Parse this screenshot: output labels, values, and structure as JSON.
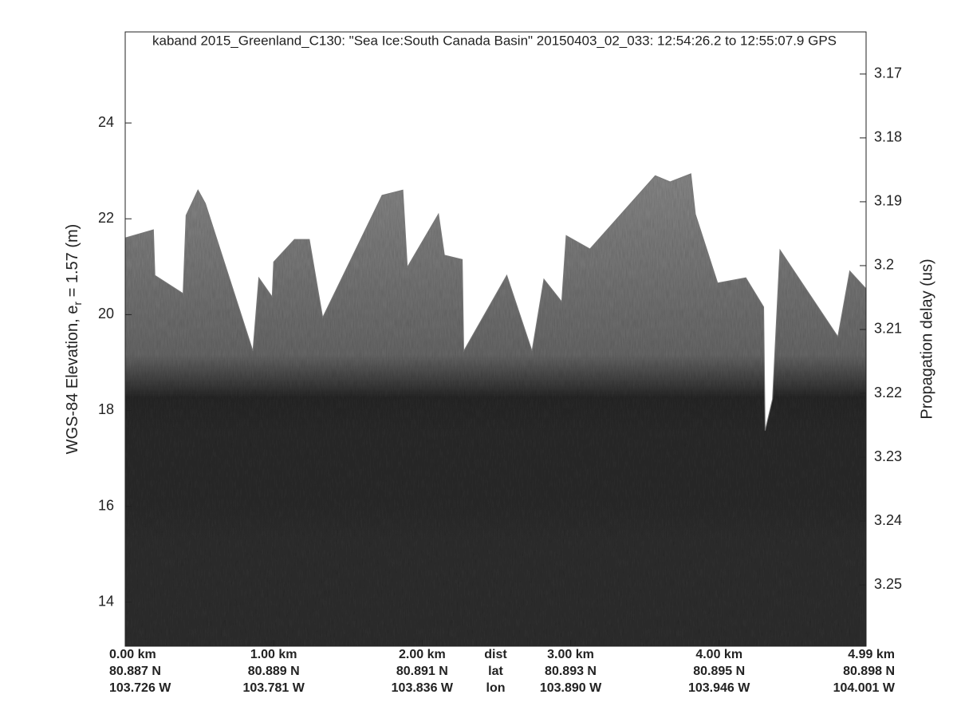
{
  "chart_data": {
    "type": "echogram",
    "title": "kaband 2015_Greenland_C130: \"Sea Ice:South Canada Basin\"  20150403_02_033: 12:54:26.2 to 12:55:07.9 GPS",
    "ylabel": "WGS-84 Elevation, e",
    "ylabel_subscript": "r",
    "ylabel_rest": " = 1.57 (m)",
    "y2label": "Propagation delay (us)",
    "xlim": [
      0,
      4.99
    ],
    "xticks": [
      {
        "value": 0,
        "label": "0.00 km"
      },
      {
        "value": 1,
        "label": "1.00 km"
      },
      {
        "value": 2,
        "label": "2.00 km"
      },
      {
        "value": 3,
        "label": "3.00 km"
      },
      {
        "value": 4,
        "label": "4.00 km"
      },
      {
        "value": 4.99,
        "label": "4.99 km"
      }
    ],
    "lat_labels": [
      "80.887 N",
      "80.889 N",
      "80.891 N",
      "80.893 N",
      "80.895 N",
      "80.898 N"
    ],
    "lon_labels": [
      "103.726 W",
      "103.781 W",
      "103.836 W",
      "103.890 W",
      "103.946 W",
      "104.001 W"
    ],
    "x_row_names": [
      "dist",
      "lat",
      "lon"
    ],
    "ylim": [
      13.08,
      25.9
    ],
    "yticks": [
      14,
      16,
      18,
      20,
      22,
      24
    ],
    "y2lim": [
      3.2596,
      3.1634
    ],
    "y2ticks": [
      3.17,
      3.18,
      3.19,
      {
        "value": 3.2,
        "label": "3.2"
      },
      3.21,
      3.22,
      3.23,
      3.24,
      3.25
    ],
    "series": [
      {
        "color": "#787878",
        "x": [
          0.0,
          0.19,
          0.2,
          0.39,
          0.41,
          0.49,
          0.54,
          0.86,
          0.9,
          0.99,
          1.0,
          1.14,
          1.24,
          1.33,
          1.73,
          1.87,
          1.9,
          2.11,
          2.15,
          2.27,
          2.28,
          2.57,
          2.74,
          2.82,
          2.94,
          2.97,
          3.13,
          3.57,
          3.67,
          3.81,
          3.84,
          3.99,
          4.18,
          4.3,
          4.31,
          4.36,
          4.41,
          4.8,
          4.88,
          4.99
        ],
        "values": [
          21.6,
          21.77,
          20.82,
          20.44,
          22.07,
          22.6,
          22.32,
          19.24,
          20.77,
          20.37,
          21.1,
          21.57,
          21.57,
          19.94,
          22.49,
          22.6,
          20.99,
          22.1,
          21.24,
          21.15,
          19.24,
          20.82,
          19.24,
          20.74,
          20.27,
          21.65,
          21.37,
          22.9,
          22.77,
          22.94,
          22.1,
          20.66,
          20.77,
          20.16,
          17.58,
          18.24,
          21.35,
          19.54,
          20.91,
          20.54
        ]
      }
    ]
  }
}
